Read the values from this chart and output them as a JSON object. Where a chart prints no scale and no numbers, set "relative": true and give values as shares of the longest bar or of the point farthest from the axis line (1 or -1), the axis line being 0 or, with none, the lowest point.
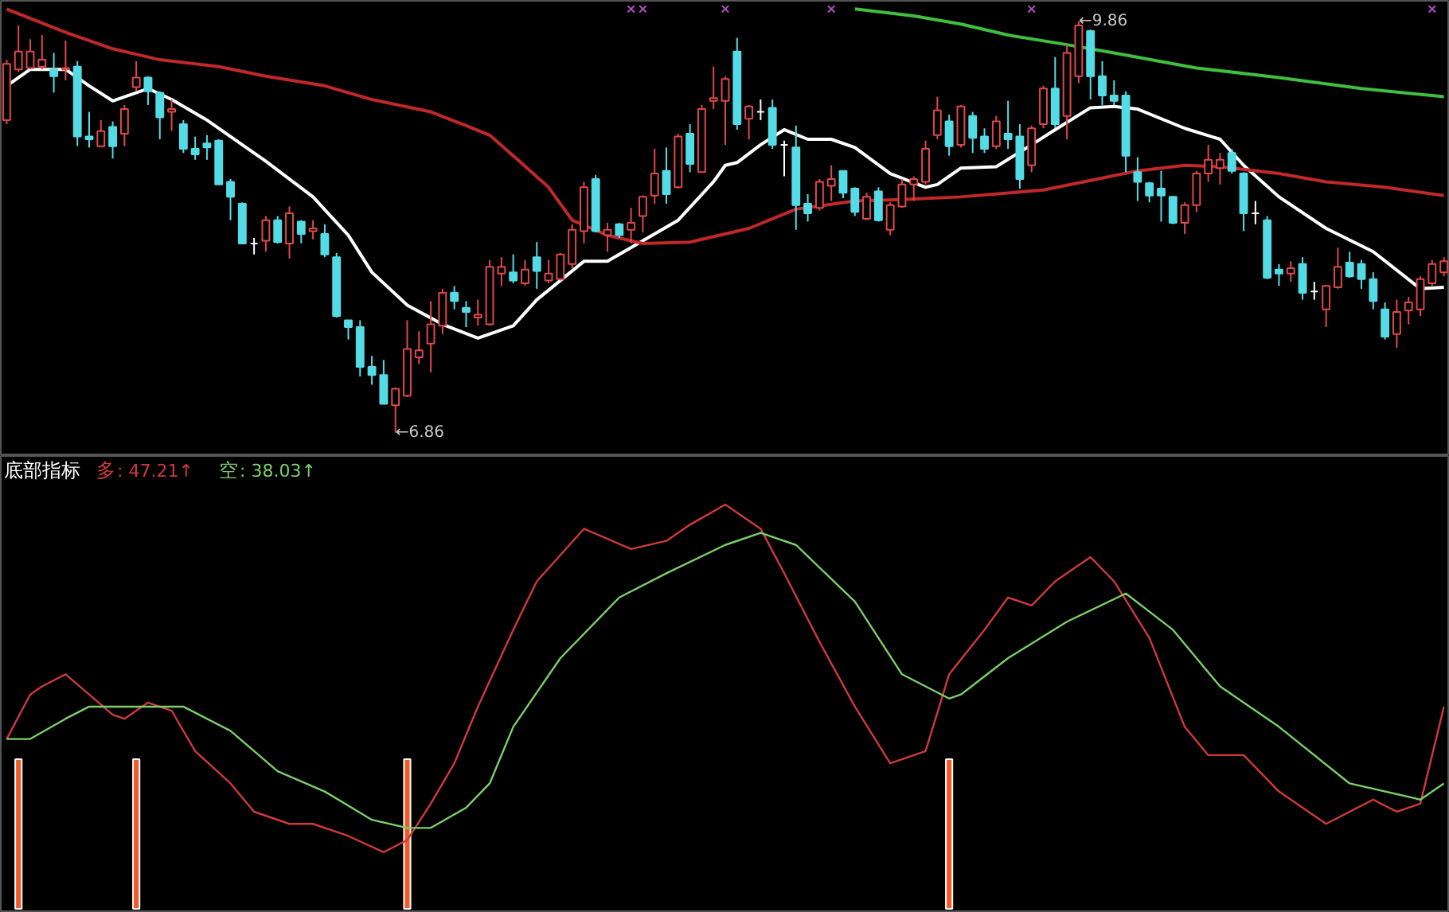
{
  "chart_data": [
    {
      "type": "candlestick",
      "tick_labels": false,
      "ylim": [
        6.69,
        10.01
      ],
      "categories": [
        null,
        null,
        null,
        null,
        null,
        null,
        null,
        null,
        null,
        null,
        null,
        null,
        null,
        null,
        null,
        null,
        null,
        null,
        null,
        null,
        null,
        null,
        null,
        null,
        null,
        null,
        null,
        null,
        null,
        null,
        null,
        null,
        null,
        null,
        null,
        null,
        null,
        null,
        null,
        null,
        null,
        null,
        null,
        null,
        null,
        null,
        null,
        null,
        null,
        null,
        null,
        null,
        null,
        null,
        null,
        null,
        null,
        null,
        null,
        null,
        null,
        null,
        null,
        null,
        null,
        null,
        null,
        null,
        null,
        null,
        null,
        null,
        null,
        null,
        null,
        null,
        null,
        null,
        null,
        null,
        null,
        null,
        null,
        null,
        null,
        null,
        null,
        null,
        null,
        null,
        null,
        null,
        null,
        null,
        null,
        null,
        null,
        null,
        null,
        null,
        null,
        null,
        null,
        null,
        null,
        null,
        null,
        null,
        null,
        null,
        null,
        null,
        null,
        null,
        null,
        null,
        null,
        null,
        null,
        null,
        null,
        null,
        null
      ],
      "ohlc": [
        [
          9.14,
          9.58,
          9.11,
          9.55
        ],
        [
          9.51,
          9.83,
          9.49,
          9.64
        ],
        [
          9.52,
          9.73,
          9.51,
          9.64
        ],
        [
          9.53,
          9.76,
          9.51,
          9.58
        ],
        [
          9.51,
          9.63,
          9.34,
          9.46
        ],
        [
          9.51,
          9.72,
          9.43,
          9.52
        ],
        [
          9.53,
          9.57,
          8.95,
          9.02
        ],
        [
          9.02,
          9.2,
          8.94,
          9.0
        ],
        [
          8.95,
          9.14,
          8.94,
          9.06
        ],
        [
          9.09,
          9.13,
          8.86,
          8.95
        ],
        [
          9.04,
          9.25,
          8.95,
          9.22
        ],
        [
          9.38,
          9.57,
          9.35,
          9.45
        ],
        [
          9.45,
          9.46,
          9.25,
          9.35
        ],
        [
          9.34,
          9.35,
          9.0,
          9.16
        ],
        [
          9.2,
          9.29,
          9.06,
          9.22
        ],
        [
          9.11,
          9.14,
          8.9,
          8.93
        ],
        [
          8.93,
          9.02,
          8.85,
          8.89
        ],
        [
          8.97,
          9.03,
          8.85,
          8.94
        ],
        [
          8.99,
          9.0,
          8.67,
          8.67
        ],
        [
          8.69,
          8.71,
          8.41,
          8.58
        ],
        [
          8.53,
          8.54,
          8.24,
          8.24
        ],
        [
          8.24,
          8.28,
          8.16,
          8.24
        ],
        [
          8.26,
          8.44,
          8.18,
          8.41
        ],
        [
          8.41,
          8.44,
          8.24,
          8.25
        ],
        [
          8.24,
          8.51,
          8.13,
          8.46
        ],
        [
          8.4,
          8.41,
          8.24,
          8.31
        ],
        [
          8.33,
          8.41,
          8.27,
          8.35
        ],
        [
          8.31,
          8.38,
          8.14,
          8.16
        ],
        [
          8.14,
          8.17,
          7.7,
          7.71
        ],
        [
          7.68,
          7.68,
          7.54,
          7.63
        ],
        [
          7.63,
          7.68,
          7.27,
          7.34
        ],
        [
          7.34,
          7.42,
          7.21,
          7.28
        ],
        [
          7.28,
          7.39,
          7.07,
          7.07
        ],
        [
          7.06,
          7.19,
          6.86,
          7.18
        ],
        [
          7.13,
          7.68,
          7.12,
          7.47
        ],
        [
          7.41,
          7.6,
          7.36,
          7.46
        ],
        [
          7.51,
          7.82,
          7.3,
          7.65
        ],
        [
          7.64,
          7.91,
          7.58,
          7.88
        ],
        [
          7.88,
          7.93,
          7.76,
          7.82
        ],
        [
          7.77,
          7.82,
          7.63,
          7.74
        ],
        [
          7.7,
          7.83,
          7.64,
          7.72
        ],
        [
          7.65,
          8.12,
          7.64,
          8.07
        ],
        [
          8.02,
          8.14,
          7.93,
          8.07
        ],
        [
          8.03,
          8.16,
          7.95,
          7.97
        ],
        [
          7.95,
          8.12,
          7.93,
          8.05
        ],
        [
          8.14,
          8.25,
          7.91,
          8.04
        ],
        [
          7.97,
          8.12,
          7.95,
          8.02
        ],
        [
          7.98,
          8.17,
          7.97,
          8.16
        ],
        [
          8.09,
          8.38,
          8.06,
          8.34
        ],
        [
          8.33,
          8.69,
          8.24,
          8.65
        ],
        [
          8.71,
          8.74,
          8.32,
          8.33
        ],
        [
          8.3,
          8.39,
          8.18,
          8.34
        ],
        [
          8.38,
          8.39,
          8.28,
          8.3
        ],
        [
          8.34,
          8.5,
          8.24,
          8.39
        ],
        [
          8.44,
          8.59,
          8.32,
          8.58
        ],
        [
          8.59,
          8.93,
          8.53,
          8.75
        ],
        [
          8.77,
          8.94,
          8.53,
          8.6
        ],
        [
          8.65,
          9.04,
          8.64,
          9.02
        ],
        [
          9.04,
          9.11,
          8.76,
          8.82
        ],
        [
          8.76,
          9.25,
          8.76,
          9.22
        ],
        [
          9.28,
          9.53,
          9.22,
          9.3
        ],
        [
          9.28,
          9.46,
          8.96,
          9.44
        ],
        [
          9.64,
          9.74,
          9.07,
          9.11
        ],
        [
          9.15,
          9.25,
          9.0,
          9.24
        ],
        [
          9.2,
          9.29,
          9.14,
          9.2
        ],
        [
          9.23,
          9.29,
          8.93,
          8.96
        ],
        [
          8.96,
          8.99,
          8.73,
          8.96
        ],
        [
          8.94,
          9.1,
          8.34,
          8.52
        ],
        [
          8.53,
          8.6,
          8.4,
          8.46
        ],
        [
          8.5,
          8.71,
          8.48,
          8.69
        ],
        [
          8.66,
          8.81,
          8.55,
          8.71
        ],
        [
          8.77,
          8.77,
          8.57,
          8.61
        ],
        [
          8.64,
          8.65,
          8.44,
          8.47
        ],
        [
          8.42,
          8.61,
          8.41,
          8.58
        ],
        [
          8.62,
          8.65,
          8.4,
          8.41
        ],
        [
          8.34,
          8.54,
          8.3,
          8.52
        ],
        [
          8.51,
          8.71,
          8.5,
          8.67
        ],
        [
          8.67,
          8.73,
          8.55,
          8.71
        ],
        [
          8.69,
          8.99,
          8.67,
          8.93
        ],
        [
          9.03,
          9.31,
          9.0,
          9.21
        ],
        [
          9.13,
          9.18,
          8.88,
          8.95
        ],
        [
          8.96,
          9.25,
          8.94,
          9.24
        ],
        [
          9.17,
          9.2,
          8.9,
          9.01
        ],
        [
          9.02,
          9.08,
          8.9,
          8.93
        ],
        [
          8.95,
          9.17,
          8.93,
          9.13
        ],
        [
          9.04,
          9.28,
          8.93,
          9.0
        ],
        [
          9.02,
          9.11,
          8.64,
          8.71
        ],
        [
          8.81,
          9.1,
          8.76,
          9.08
        ],
        [
          9.11,
          9.39,
          9.08,
          9.37
        ],
        [
          9.37,
          9.6,
          9.08,
          9.11
        ],
        [
          9.17,
          9.69,
          9.0,
          9.63
        ],
        [
          9.46,
          9.86,
          9.41,
          9.83
        ],
        [
          9.79,
          9.8,
          9.29,
          9.46
        ],
        [
          9.46,
          9.57,
          9.25,
          9.32
        ],
        [
          9.32,
          9.43,
          9.25,
          9.28
        ],
        [
          9.32,
          9.35,
          8.76,
          8.88
        ],
        [
          8.76,
          8.87,
          8.55,
          8.69
        ],
        [
          8.68,
          8.69,
          8.54,
          8.59
        ],
        [
          8.64,
          8.77,
          8.4,
          8.59
        ],
        [
          8.58,
          8.58,
          8.38,
          8.39
        ],
        [
          8.39,
          8.54,
          8.31,
          8.52
        ],
        [
          8.52,
          8.77,
          8.47,
          8.75
        ],
        [
          8.75,
          8.96,
          8.69,
          8.85
        ],
        [
          8.79,
          8.9,
          8.67,
          8.85
        ],
        [
          8.9,
          8.93,
          8.75,
          8.77
        ],
        [
          8.75,
          8.76,
          8.33,
          8.46
        ],
        [
          8.46,
          8.55,
          8.38,
          8.46
        ],
        [
          8.41,
          8.44,
          7.98,
          7.99
        ],
        [
          8.05,
          8.09,
          7.93,
          8.02
        ],
        [
          8.02,
          8.11,
          7.96,
          8.06
        ],
        [
          8.09,
          8.14,
          7.83,
          7.88
        ],
        [
          7.89,
          7.96,
          7.83,
          7.89
        ],
        [
          7.76,
          7.93,
          7.63,
          7.93
        ],
        [
          7.92,
          8.21,
          7.91,
          8.07
        ],
        [
          8.1,
          8.18,
          7.99,
          8.0
        ],
        [
          8.09,
          8.12,
          7.91,
          7.98
        ],
        [
          7.98,
          8.03,
          7.76,
          7.82
        ],
        [
          7.76,
          7.81,
          7.54,
          7.56
        ],
        [
          7.58,
          7.83,
          7.48,
          7.74
        ],
        [
          7.75,
          7.85,
          7.65,
          7.81
        ],
        [
          7.76,
          8.0,
          7.71,
          7.98
        ],
        [
          7.95,
          8.12,
          7.93,
          8.09
        ],
        [
          8.03,
          8.14,
          8.0,
          8.11
        ]
      ],
      "colors": [
        "#e04848",
        "#e04848",
        "#e04848",
        "#e04848",
        "#54dce6",
        "#e04848",
        "#54dce6",
        "#54dce6",
        "#e04848",
        "#54dce6",
        "#e04848",
        "#e04848",
        "#54dce6",
        "#54dce6",
        "#e04848",
        "#54dce6",
        "#54dce6",
        "#54dce6",
        "#54dce6",
        "#54dce6",
        "#54dce6",
        "#ffffff",
        "#e04848",
        "#54dce6",
        "#e04848",
        "#54dce6",
        "#e04848",
        "#54dce6",
        "#54dce6",
        "#54dce6",
        "#54dce6",
        "#54dce6",
        "#54dce6",
        "#e04848",
        "#e04848",
        "#e04848",
        "#e04848",
        "#e04848",
        "#54dce6",
        "#54dce6",
        "#e04848",
        "#e04848",
        "#e04848",
        "#54dce6",
        "#e04848",
        "#54dce6",
        "#e04848",
        "#e04848",
        "#e04848",
        "#e04848",
        "#54dce6",
        "#e04848",
        "#54dce6",
        "#e04848",
        "#e04848",
        "#e04848",
        "#54dce6",
        "#e04848",
        "#54dce6",
        "#e04848",
        "#e04848",
        "#e04848",
        "#54dce6",
        "#e04848",
        "#ffffff",
        "#54dce6",
        "#ffffff",
        "#54dce6",
        "#54dce6",
        "#e04848",
        "#e04848",
        "#54dce6",
        "#54dce6",
        "#e04848",
        "#54dce6",
        "#e04848",
        "#e04848",
        "#e04848",
        "#e04848",
        "#e04848",
        "#54dce6",
        "#e04848",
        "#54dce6",
        "#54dce6",
        "#e04848",
        "#54dce6",
        "#54dce6",
        "#e04848",
        "#e04848",
        "#54dce6",
        "#e04848",
        "#e04848",
        "#54dce6",
        "#54dce6",
        "#54dce6",
        "#54dce6",
        "#54dce6",
        "#54dce6",
        "#54dce6",
        "#54dce6",
        "#e04848",
        "#e04848",
        "#e04848",
        "#e04848",
        "#54dce6",
        "#54dce6",
        "#ffffff",
        "#54dce6",
        "#54dce6",
        "#e04848",
        "#54dce6",
        "#ffffff",
        "#e04848",
        "#e04848",
        "#54dce6",
        "#54dce6",
        "#54dce6",
        "#54dce6",
        "#e04848",
        "#e04848",
        "#e04848",
        "#e04848",
        "#e04848"
      ],
      "series": [
        {
          "type": "line",
          "color": "#ffffff",
          "values": [
            9.39,
            null,
            9.51,
            null,
            null,
            9.51,
            null,
            9.39,
            null,
            9.28,
            null,
            null,
            9.37,
            null,
            9.29,
            null,
            null,
            9.14,
            null,
            9.02,
            null,
            null,
            8.84,
            null,
            null,
            null,
            8.58,
            null,
            null,
            8.3,
            null,
            8.03,
            null,
            null,
            7.79,
            null,
            null,
            7.65,
            null,
            null,
            7.55,
            null,
            null,
            7.64,
            null,
            7.83,
            null,
            null,
            null,
            8.11,
            null,
            8.11,
            null,
            null,
            8.26,
            null,
            null,
            8.41,
            null,
            null,
            8.69,
            8.81,
            8.83,
            null,
            8.96,
            null,
            9.07,
            null,
            9.0,
            null,
            9.0,
            null,
            8.94,
            null,
            null,
            8.75,
            null,
            null,
            8.65,
            8.67,
            null,
            8.79,
            null,
            null,
            8.8,
            null,
            null,
            8.96,
            null,
            9.07,
            null,
            null,
            9.23,
            null,
            9.24,
            null,
            9.22,
            null,
            null,
            null,
            9.08,
            null,
            null,
            9.0,
            null,
            8.81,
            null,
            null,
            8.58,
            null,
            null,
            null,
            8.35,
            null,
            null,
            null,
            8.18,
            null,
            null,
            null,
            7.91,
            null,
            7.92
          ]
        },
        {
          "type": "line",
          "color": "#c0282a",
          "values": [
            9.95,
            null,
            null,
            null,
            null,
            9.78,
            null,
            null,
            null,
            9.66,
            null,
            null,
            null,
            9.58,
            null,
            null,
            null,
            null,
            9.53,
            null,
            null,
            null,
            9.46,
            null,
            null,
            null,
            null,
            9.39,
            null,
            null,
            null,
            9.29,
            null,
            null,
            null,
            null,
            9.2,
            null,
            null,
            9.1,
            null,
            9.03,
            null,
            8.88,
            null,
            null,
            8.65,
            null,
            8.41,
            null,
            null,
            8.3,
            null,
            null,
            8.24,
            null,
            null,
            null,
            8.25,
            null,
            null,
            null,
            null,
            8.35,
            null,
            null,
            null,
            8.49,
            null,
            null,
            null,
            null,
            8.55,
            null,
            null,
            null,
            8.56,
            null,
            null,
            null,
            null,
            8.58,
            null,
            null,
            null,
            null,
            null,
            null,
            8.63,
            null,
            null,
            null,
            8.7,
            null,
            null,
            null,
            8.77,
            null,
            null,
            null,
            8.81,
            null,
            null,
            8.8,
            null,
            null,
            null,
            null,
            8.75,
            null,
            null,
            null,
            8.69,
            null,
            null,
            null,
            null,
            8.65,
            null,
            null,
            null,
            null,
            8.59
          ]
        },
        {
          "type": "line",
          "color": "#3fbf3f",
          "values": [
            null,
            null,
            null,
            null,
            null,
            null,
            null,
            null,
            null,
            null,
            null,
            null,
            null,
            null,
            null,
            null,
            null,
            null,
            null,
            null,
            null,
            null,
            null,
            null,
            null,
            null,
            null,
            null,
            null,
            null,
            null,
            null,
            null,
            null,
            null,
            null,
            null,
            null,
            null,
            null,
            null,
            null,
            null,
            null,
            null,
            null,
            null,
            null,
            null,
            null,
            null,
            null,
            null,
            null,
            null,
            null,
            null,
            null,
            null,
            null,
            null,
            null,
            null,
            null,
            null,
            null,
            null,
            null,
            null,
            null,
            null,
            null,
            9.95,
            null,
            null,
            null,
            null,
            9.9,
            null,
            null,
            null,
            9.84,
            null,
            null,
            null,
            9.76,
            null,
            null,
            null,
            null,
            9.69,
            null,
            null,
            null,
            9.63,
            null,
            null,
            null,
            null,
            null,
            null,
            9.52,
            null,
            null,
            null,
            null,
            null,
            null,
            9.45,
            null,
            null,
            null,
            null,
            null,
            null,
            9.37,
            null,
            null,
            null,
            null,
            null,
            null,
            9.31
          ]
        },
        {
          "type": "scatter",
          "marker": "cross",
          "color": "#b050c0",
          "values": [
            null,
            null,
            null,
            null,
            null,
            null,
            null,
            null,
            null,
            null,
            null,
            null,
            null,
            null,
            null,
            null,
            null,
            null,
            null,
            null,
            null,
            null,
            null,
            null,
            null,
            null,
            null,
            null,
            null,
            null,
            null,
            null,
            null,
            null,
            null,
            null,
            null,
            null,
            null,
            null,
            null,
            null,
            null,
            null,
            null,
            null,
            null,
            null,
            null,
            null,
            null,
            null,
            null,
            9.95,
            9.95,
            null,
            null,
            null,
            null,
            null,
            null,
            9.95,
            null,
            null,
            null,
            null,
            null,
            null,
            null,
            null,
            9.95,
            null,
            null,
            null,
            null,
            null,
            null,
            null,
            null,
            null,
            null,
            null,
            null,
            null,
            null,
            null,
            null,
            9.95,
            null,
            null,
            null,
            null,
            null,
            null,
            null,
            null,
            null,
            null,
            null,
            null,
            null,
            null,
            null,
            null,
            null,
            null,
            null,
            null,
            null,
            null,
            null,
            null,
            null,
            null,
            null,
            null,
            null,
            null,
            null,
            null,
            null,
            9.95,
            null
          ]
        }
      ],
      "annotations": [
        "←6.86",
        "←9.86"
      ]
    },
    {
      "type": "line",
      "title": "底部指标",
      "relative": true,
      "tick_labels": false,
      "legend": "top left",
      "categories": [
        null,
        null,
        null,
        null,
        null,
        null,
        null,
        null,
        null,
        null,
        null,
        null,
        null,
        null,
        null,
        null,
        null,
        null,
        null,
        null,
        null,
        null,
        null,
        null,
        null,
        null,
        null,
        null,
        null,
        null,
        null,
        null,
        null,
        null,
        null,
        null,
        null,
        null,
        null,
        null,
        null,
        null,
        null,
        null,
        null,
        null,
        null,
        null,
        null,
        null,
        null,
        null,
        null,
        null,
        null,
        null,
        null,
        null,
        null,
        null,
        null,
        null,
        null,
        null,
        null,
        null,
        null,
        null,
        null,
        null,
        null,
        null,
        null,
        null,
        null,
        null,
        null,
        null,
        null,
        null,
        null,
        null,
        null,
        null,
        null,
        null,
        null,
        null,
        null,
        null,
        null,
        null,
        null,
        null,
        null,
        null,
        null,
        null,
        null,
        null,
        null,
        null,
        null,
        null,
        null,
        null,
        null,
        null,
        null,
        null,
        null,
        null,
        null,
        null,
        null,
        null,
        null,
        null,
        null,
        null,
        null,
        null,
        null
      ],
      "series": [
        {
          "type": "bar",
          "color": "#f05a28",
          "values": [
            null,
            0.37,
            null,
            null,
            null,
            null,
            null,
            null,
            null,
            null,
            null,
            0.37,
            null,
            null,
            null,
            null,
            null,
            null,
            null,
            null,
            null,
            null,
            null,
            null,
            null,
            null,
            null,
            null,
            null,
            null,
            null,
            null,
            null,
            null,
            0.37,
            null,
            null,
            null,
            null,
            null,
            null,
            null,
            null,
            null,
            null,
            null,
            null,
            null,
            null,
            null,
            null,
            null,
            null,
            null,
            null,
            null,
            null,
            null,
            null,
            null,
            null,
            null,
            null,
            null,
            null,
            null,
            null,
            null,
            null,
            null,
            null,
            null,
            null,
            null,
            null,
            null,
            null,
            null,
            null,
            null,
            0.37,
            null,
            null,
            null,
            null,
            null,
            null,
            null,
            null,
            null,
            null,
            null,
            null,
            null,
            null,
            null,
            null,
            null,
            null,
            null,
            null,
            null,
            null,
            null,
            null,
            null,
            null,
            null,
            null,
            null,
            null,
            null,
            null,
            null,
            null,
            null,
            null,
            null,
            null,
            null,
            null,
            null,
            null
          ]
        },
        {
          "name": "多",
          "color": "#d03a3a",
          "values": [
            0.42,
            null,
            0.53,
            0.55,
            null,
            0.58,
            null,
            0.53,
            null,
            0.48,
            0.47,
            null,
            0.51,
            null,
            0.49,
            null,
            0.39,
            null,
            null,
            0.31,
            null,
            0.24,
            null,
            null,
            0.21,
            null,
            0.21,
            null,
            null,
            0.18,
            null,
            null,
            0.14,
            null,
            0.17,
            null,
            0.26,
            null,
            0.36,
            null,
            0.5,
            null,
            null,
            0.69,
            null,
            0.81,
            null,
            null,
            null,
            0.94,
            null,
            null,
            null,
            0.89,
            null,
            null,
            0.91,
            null,
            0.95,
            null,
            null,
            1.0,
            null,
            null,
            0.94,
            null,
            0.83,
            null,
            null,
            0.66,
            null,
            null,
            0.5,
            null,
            null,
            0.36,
            null,
            null,
            0.39,
            null,
            0.58,
            null,
            null,
            0.69,
            null,
            0.77,
            null,
            0.75,
            null,
            0.81,
            null,
            null,
            0.87,
            null,
            0.81,
            null,
            null,
            0.67,
            null,
            null,
            0.45,
            null,
            0.38,
            null,
            null,
            0.38,
            null,
            null,
            0.29,
            null,
            null,
            null,
            0.21,
            null,
            null,
            null,
            0.27,
            null,
            0.24,
            null,
            0.26,
            null,
            0.5
          ]
        },
        {
          "name": "空",
          "color": "#7ccf6a",
          "values": [
            0.42,
            null,
            0.42,
            null,
            null,
            0.47,
            null,
            0.5,
            null,
            null,
            0.5,
            null,
            null,
            null,
            null,
            0.5,
            null,
            null,
            null,
            0.44,
            null,
            null,
            null,
            0.34,
            null,
            null,
            null,
            0.29,
            null,
            null,
            null,
            0.22,
            null,
            null,
            0.2,
            null,
            0.2,
            null,
            null,
            0.25,
            null,
            0.31,
            null,
            0.45,
            null,
            null,
            null,
            0.62,
            null,
            null,
            null,
            null,
            0.77,
            null,
            null,
            null,
            0.83,
            null,
            null,
            null,
            null,
            0.9,
            null,
            null,
            0.93,
            null,
            null,
            0.9,
            null,
            null,
            null,
            null,
            0.76,
            null,
            null,
            null,
            0.58,
            null,
            null,
            null,
            0.52,
            0.53,
            null,
            null,
            null,
            0.62,
            null,
            null,
            null,
            null,
            0.71,
            null,
            null,
            null,
            null,
            0.78,
            null,
            null,
            null,
            0.69,
            null,
            null,
            null,
            0.55,
            null,
            null,
            null,
            null,
            0.45,
            null,
            null,
            null,
            null,
            null,
            0.31,
            null,
            null,
            null,
            null,
            null,
            0.27,
            null,
            0.31
          ]
        }
      ],
      "annotations": [
        ": 47.21↑",
        ": 38.03↑"
      ]
    }
  ]
}
